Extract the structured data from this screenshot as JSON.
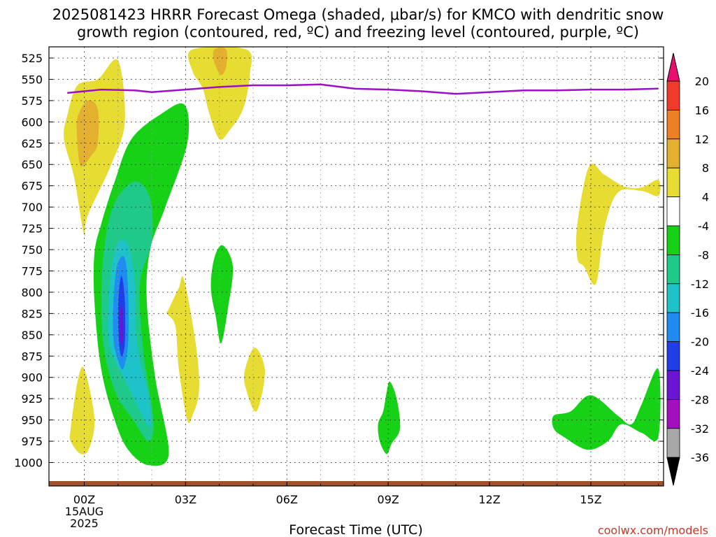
{
  "title_line1": "2025081423 HRRR Forecast Omega (shaded, μbar/s) for KMCO with dendritic snow",
  "title_line2": "growth region (contoured, red, ºC) and freezing level (contoured, purple, ºC)",
  "credit": "coolwx.com/models",
  "chart_data": {
    "type": "heatmap",
    "title": "2025081423 HRRR Forecast Omega (shaded, μbar/s) for KMCO with dendritic snow growth region (contoured, red, ºC) and freezing level (contoured, purple, ºC)",
    "xlabel": "Forecast Time (UTC)",
    "ylabel": "",
    "x_range_hours": [
      -0.5,
      17.0
    ],
    "x_ticks": [
      {
        "hour": 0,
        "label": "00Z",
        "sub1": "15AUG",
        "sub2": "2025"
      },
      {
        "hour": 3,
        "label": "03Z"
      },
      {
        "hour": 6,
        "label": "06Z"
      },
      {
        "hour": 9,
        "label": "09Z"
      },
      {
        "hour": 12,
        "label": "12Z"
      },
      {
        "hour": 15,
        "label": "15Z"
      }
    ],
    "y_range_hpa": [
      1010,
      515
    ],
    "y_ticks": [
      525,
      550,
      575,
      600,
      625,
      650,
      675,
      700,
      725,
      750,
      775,
      800,
      825,
      850,
      875,
      900,
      925,
      950,
      975,
      1000
    ],
    "grid": true,
    "colorbar": {
      "levels": [
        "20",
        "16",
        "12",
        "8",
        "4",
        "-4",
        "-8",
        "-12",
        "-16",
        "-20",
        "-24",
        "-28",
        "-32",
        "-36"
      ],
      "colors": [
        "#e8106e",
        "#f03a2b",
        "#ef7f24",
        "#e4b02f",
        "#e6dc32",
        "#ffffff",
        "#17d117",
        "#1fc98a",
        "#1ec2c9",
        "#1e8cf0",
        "#1f3ee8",
        "#6a14d4",
        "#a30fbf",
        "#a8a8a8",
        "#000000"
      ]
    },
    "freezing_level": {
      "color": "#9b0fc8",
      "hours": [
        -0.5,
        0.5,
        1.5,
        2.0,
        3.0,
        4.0,
        5.0,
        6.0,
        7.0,
        8.0,
        9.0,
        10.0,
        11.0,
        12.0,
        13.0,
        14.0,
        15.0,
        16.0,
        17.0
      ],
      "pressure": [
        566,
        562,
        563,
        565,
        562,
        559,
        557,
        557,
        556,
        561,
        562,
        564,
        567,
        565,
        563,
        563,
        562,
        562,
        561
      ]
    },
    "surface": {
      "color": "#a0522d",
      "pressure": 1012
    },
    "omega_regions": [
      {
        "category": "4",
        "color": "#e6dc32",
        "points": [
          [
            -0.5,
            592
          ],
          [
            -0.2,
            557
          ],
          [
            0.4,
            550
          ],
          [
            1.0,
            528
          ],
          [
            1.2,
            600
          ],
          [
            0.8,
            650
          ],
          [
            0.1,
            710
          ],
          [
            0.0,
            733
          ],
          [
            -0.3,
            665
          ],
          [
            -0.6,
            620
          ]
        ]
      },
      {
        "category": "8",
        "color": "#e4b02f",
        "points": [
          [
            -0.2,
            595
          ],
          [
            0.1,
            575
          ],
          [
            0.4,
            585
          ],
          [
            0.4,
            625
          ],
          [
            0.2,
            640
          ],
          [
            -0.1,
            652
          ],
          [
            -0.2,
            625
          ]
        ]
      },
      {
        "category": "4",
        "color": "#e6dc32",
        "points": [
          [
            3.2,
            515
          ],
          [
            4.8,
            515
          ],
          [
            4.9,
            545
          ],
          [
            4.7,
            585
          ],
          [
            4.3,
            610
          ],
          [
            4.0,
            620
          ],
          [
            3.7,
            590
          ],
          [
            3.5,
            560
          ],
          [
            3.2,
            540
          ]
        ]
      },
      {
        "category": "8",
        "color": "#e4b02f",
        "points": [
          [
            3.85,
            515
          ],
          [
            4.2,
            515
          ],
          [
            4.2,
            535
          ],
          [
            4.05,
            545
          ],
          [
            3.85,
            530
          ]
        ]
      },
      {
        "category": "4",
        "color": "#e6dc32",
        "points": [
          [
            -0.4,
            960
          ],
          [
            -0.2,
            905
          ],
          [
            0.0,
            890
          ],
          [
            0.3,
            948
          ],
          [
            0.15,
            983
          ],
          [
            -0.1,
            990
          ],
          [
            -0.4,
            975
          ]
        ]
      },
      {
        "category": "4",
        "color": "#e6dc32",
        "points": [
          [
            2.5,
            820
          ],
          [
            2.8,
            795
          ],
          [
            2.95,
            785
          ],
          [
            3.3,
            860
          ],
          [
            3.4,
            915
          ],
          [
            3.2,
            945
          ],
          [
            3.05,
            950
          ],
          [
            2.8,
            890
          ],
          [
            2.7,
            840
          ],
          [
            2.45,
            825
          ]
        ]
      },
      {
        "category": "4",
        "color": "#e6dc32",
        "points": [
          [
            4.75,
            893
          ],
          [
            5.05,
            865
          ],
          [
            5.35,
            893
          ],
          [
            5.1,
            940
          ],
          [
            4.8,
            915
          ]
        ]
      },
      {
        "category": "4",
        "color": "#e6dc32",
        "points": [
          [
            14.6,
            760
          ],
          [
            14.6,
            720
          ],
          [
            14.95,
            652
          ],
          [
            15.4,
            662
          ],
          [
            16.0,
            676
          ],
          [
            16.5,
            677
          ],
          [
            17.0,
            668
          ],
          [
            17.0,
            687
          ],
          [
            16.5,
            681
          ],
          [
            15.8,
            683
          ],
          [
            15.4,
            725
          ],
          [
            15.15,
            790
          ],
          [
            14.8,
            770
          ]
        ]
      },
      {
        "category": "-4",
        "color": "#17d117",
        "points": [
          [
            0.3,
            810
          ],
          [
            0.3,
            755
          ],
          [
            0.5,
            720
          ],
          [
            0.9,
            670
          ],
          [
            1.4,
            620
          ],
          [
            2.3,
            590
          ],
          [
            2.97,
            580
          ],
          [
            3.05,
            625
          ],
          [
            2.4,
            700
          ],
          [
            1.95,
            750
          ],
          [
            1.85,
            810
          ],
          [
            2.1,
            900
          ],
          [
            2.5,
            990
          ],
          [
            1.9,
            1003
          ],
          [
            1.3,
            985
          ],
          [
            0.9,
            950
          ],
          [
            0.5,
            890
          ]
        ]
      },
      {
        "category": "-8",
        "color": "#1fc98a",
        "points": [
          [
            0.5,
            810
          ],
          [
            0.6,
            745
          ],
          [
            0.9,
            695
          ],
          [
            1.5,
            670
          ],
          [
            1.95,
            690
          ],
          [
            2.0,
            740
          ],
          [
            1.65,
            790
          ],
          [
            1.75,
            870
          ],
          [
            2.05,
            950
          ],
          [
            1.9,
            975
          ],
          [
            1.45,
            950
          ],
          [
            0.95,
            920
          ],
          [
            0.6,
            870
          ]
        ]
      },
      {
        "category": "-12",
        "color": "#1ec2c9",
        "points": [
          [
            0.7,
            830
          ],
          [
            0.8,
            775
          ],
          [
            1.0,
            742
          ],
          [
            1.3,
            745
          ],
          [
            1.5,
            790
          ],
          [
            1.55,
            860
          ],
          [
            1.9,
            920
          ],
          [
            1.95,
            958
          ],
          [
            1.65,
            940
          ],
          [
            1.3,
            910
          ],
          [
            0.9,
            880
          ],
          [
            0.75,
            860
          ]
        ]
      },
      {
        "category": "-16",
        "color": "#1e8cf0",
        "points": [
          [
            0.85,
            830
          ],
          [
            0.9,
            790
          ],
          [
            1.0,
            765
          ],
          [
            1.2,
            760
          ],
          [
            1.3,
            800
          ],
          [
            1.3,
            860
          ],
          [
            1.15,
            890
          ],
          [
            1.0,
            880
          ],
          [
            0.88,
            860
          ]
        ]
      },
      {
        "category": "-20",
        "color": "#1f3ee8",
        "points": [
          [
            1.0,
            820
          ],
          [
            1.05,
            790
          ],
          [
            1.12,
            782
          ],
          [
            1.2,
            810
          ],
          [
            1.2,
            860
          ],
          [
            1.1,
            875
          ],
          [
            1.02,
            855
          ]
        ]
      },
      {
        "category": "-24",
        "color": "#6a14d4",
        "points": [
          [
            1.05,
            830
          ],
          [
            1.1,
            815
          ],
          [
            1.15,
            830
          ],
          [
            1.15,
            855
          ],
          [
            1.1,
            862
          ],
          [
            1.05,
            850
          ]
        ]
      },
      {
        "category": "-4",
        "color": "#17d117",
        "points": [
          [
            3.75,
            795
          ],
          [
            3.85,
            760
          ],
          [
            4.1,
            745
          ],
          [
            4.4,
            770
          ],
          [
            4.25,
            820
          ],
          [
            4.05,
            860
          ],
          [
            3.9,
            830
          ]
        ]
      },
      {
        "category": "-4",
        "color": "#17d117",
        "points": [
          [
            8.7,
            955
          ],
          [
            8.85,
            940
          ],
          [
            8.95,
            918
          ],
          [
            9.05,
            905
          ],
          [
            9.25,
            925
          ],
          [
            9.35,
            960
          ],
          [
            9.1,
            978
          ],
          [
            8.95,
            990
          ],
          [
            8.75,
            975
          ]
        ]
      },
      {
        "category": "-4",
        "color": "#17d117",
        "points": [
          [
            13.9,
            945
          ],
          [
            14.4,
            940
          ],
          [
            15.0,
            921
          ],
          [
            15.8,
            945
          ],
          [
            16.2,
            955
          ],
          [
            16.5,
            932
          ],
          [
            17.0,
            890
          ],
          [
            17.0,
            970
          ],
          [
            16.5,
            965
          ],
          [
            15.9,
            955
          ],
          [
            15.5,
            975
          ],
          [
            14.9,
            985
          ],
          [
            14.2,
            970
          ],
          [
            13.9,
            960
          ]
        ]
      }
    ]
  }
}
